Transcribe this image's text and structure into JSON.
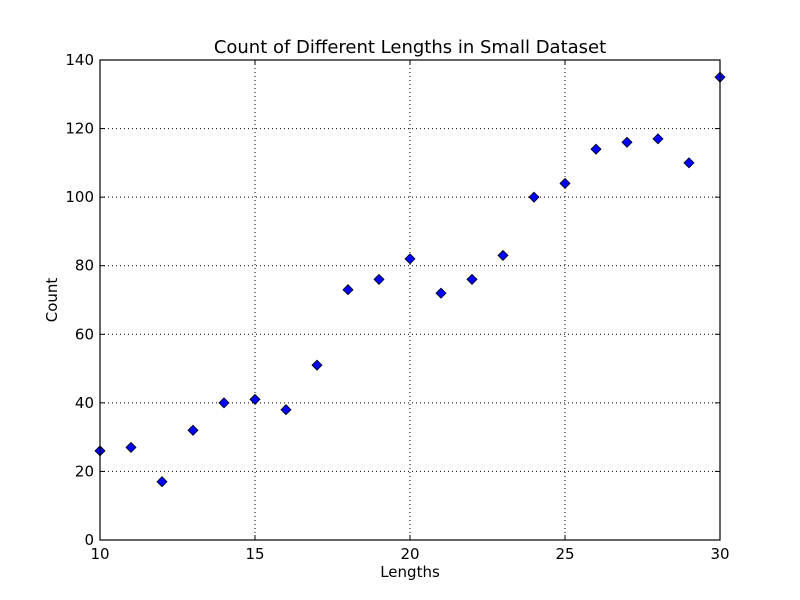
{
  "chart_data": {
    "type": "scatter",
    "title": "Count of Different Lengths in Small Dataset",
    "xlabel": "Lengths",
    "ylabel": "Count",
    "xlim": [
      10,
      30
    ],
    "ylim": [
      0,
      140
    ],
    "x_ticks": [
      10,
      15,
      20,
      25,
      30
    ],
    "y_ticks": [
      0,
      20,
      40,
      60,
      80,
      100,
      120,
      140
    ],
    "grid": true,
    "marker": "diamond",
    "marker_color": "#0000ff",
    "series": [
      {
        "points": [
          {
            "x": 10,
            "y": 26
          },
          {
            "x": 11,
            "y": 27
          },
          {
            "x": 12,
            "y": 17
          },
          {
            "x": 13,
            "y": 32
          },
          {
            "x": 14,
            "y": 40
          },
          {
            "x": 15,
            "y": 41
          },
          {
            "x": 16,
            "y": 38
          },
          {
            "x": 17,
            "y": 51
          },
          {
            "x": 18,
            "y": 73
          },
          {
            "x": 19,
            "y": 76
          },
          {
            "x": 20,
            "y": 82
          },
          {
            "x": 21,
            "y": 72
          },
          {
            "x": 22,
            "y": 76
          },
          {
            "x": 23,
            "y": 83
          },
          {
            "x": 24,
            "y": 100
          },
          {
            "x": 25,
            "y": 104
          },
          {
            "x": 26,
            "y": 114
          },
          {
            "x": 27,
            "y": 116
          },
          {
            "x": 28,
            "y": 117
          },
          {
            "x": 29,
            "y": 110
          },
          {
            "x": 30,
            "y": 135
          }
        ]
      }
    ]
  }
}
